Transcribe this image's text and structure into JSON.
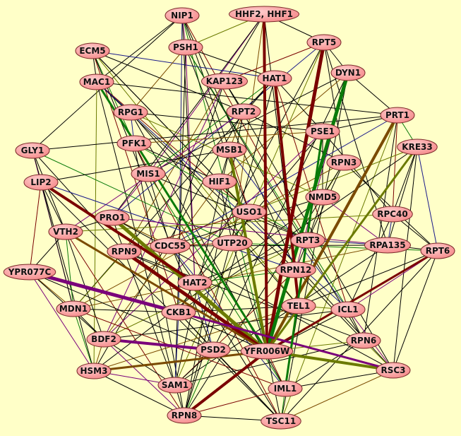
{
  "colors": {
    "background": "#ffffc8",
    "node_fill": "#ff9a9a",
    "node_border": "#7a2a2a",
    "k": "#000000",
    "r": "#7a0000",
    "g": "#0a7a0a",
    "o": "#6b7a00",
    "b": "#7a4a00",
    "p": "#7a007a",
    "n": "#1a1a8a"
  },
  "nodes": [
    "NIP1",
    "HHF2, HHF1",
    "ECM5",
    "PSH1",
    "RPT5",
    "DYN1",
    "MAC1",
    "KAP123",
    "HAT1",
    "RPG1",
    "RPT2",
    "PRT1",
    "PSE1",
    "PFK1",
    "KRE33",
    "GLY1",
    "MSB1",
    "RPN3",
    "MIS1",
    "LIP2",
    "HIF1",
    "NMD5",
    "USO1",
    "RPC40",
    "PRO1",
    "VTH2",
    "RPT3",
    "RPA135",
    "RPT6",
    "CDC55",
    "UTP20",
    "RPN9",
    "YPR077C",
    "RPN12",
    "HAT2",
    "TEL1",
    "ICL1",
    "MDN1",
    "CKB1",
    "RPN6",
    "BDF2",
    "PSD2",
    "YFR006W",
    "RSC3",
    "HSM3",
    "SAM1",
    "IML1",
    "RPN8",
    "TSC11"
  ],
  "heavy_edges": [
    [
      "YFR006W",
      "RPT5",
      "r",
      5
    ],
    [
      "YFR006W",
      "DYN1",
      "g",
      5
    ],
    [
      "YFR006W",
      "PRT1",
      "b",
      4
    ],
    [
      "YFR006W",
      "HHF2, HHF1",
      "r",
      4
    ],
    [
      "YFR006W",
      "PRO1",
      "o",
      5
    ],
    [
      "YFR006W",
      "RPN9",
      "r",
      5
    ],
    [
      "YFR006W",
      "RSC3",
      "o",
      4
    ],
    [
      "YPR077C",
      "CKB1",
      "p",
      5
    ],
    [
      "YFR006W",
      "RPN8",
      "r",
      4
    ],
    [
      "YFR006W",
      "VTH2",
      "b",
      3
    ],
    [
      "YFR006W",
      "MSB1",
      "o",
      4
    ],
    [
      "YFR006W",
      "MAC1",
      "g",
      3
    ],
    [
      "BDF2",
      "PSD2",
      "p",
      4
    ],
    [
      "YFR006W",
      "RPT6",
      "r",
      3
    ],
    [
      "YFR006W",
      "HSM3",
      "b",
      3
    ],
    [
      "HAT1",
      "TEL1",
      "r",
      4
    ],
    [
      "LIP2",
      "HAT2",
      "r",
      4
    ],
    [
      "CKB1",
      "RSC3",
      "p",
      3
    ],
    [
      "YFR006W",
      "KRE33",
      "o",
      3
    ],
    [
      "PSE1",
      "IML1",
      "g",
      3
    ]
  ],
  "edges": [
    "NIP1-PSH1",
    "NIP1-MAC1",
    "NIP1-MSB1",
    "NIP1-YFR006W",
    "NIP1-HAT2",
    "NIP1-RPT3",
    "NIP1-GLY1",
    "NIP1-CKB1",
    "NIP1-RPN12",
    "HHF2, HHF1-PSH1",
    "HHF2, HHF1-RPT5",
    "HHF2, HHF1-KAP123",
    "HHF2, HHF1-UTP20",
    "HHF2, HHF1-TEL1",
    "HHF2, HHF1-MIS1",
    "HHF2, HHF1-PRO1",
    "ECM5-MAC1",
    "ECM5-PFK1",
    "ECM5-HIF1",
    "ECM5-CKB1",
    "ECM5-RPT2",
    "ECM5-HAT1",
    "ECM5-USO1",
    "ECM5-TEL1",
    "ECM5-PSD2",
    "PSH1-HAT1",
    "PSH1-RPG1",
    "PSH1-USO1",
    "PSH1-HAT2",
    "PSH1-SAM1",
    "PSH1-RPN6",
    "PSH1-ICL1",
    "RPT5-DYN1",
    "RPT5-KAP123",
    "RPT5-RPN3",
    "RPT5-PRO1",
    "RPT5-CKB1",
    "RPT5-SAM1",
    "RPT5-RPA135",
    "DYN1-PRT1",
    "DYN1-HIF1",
    "DYN1-MIS1",
    "DYN1-RPN12",
    "DYN1-TSC11",
    "DYN1-PSD2",
    "MAC1-RPG1",
    "MAC1-PRT1",
    "MAC1-USO1",
    "MAC1-RPN12",
    "MAC1-ICL1",
    "MAC1-SAM1",
    "MAC1-HSM3",
    "KAP123-RPT2",
    "KAP123-CDC55",
    "KAP123-RPN9",
    "KAP123-RSC3",
    "KAP123-BDF2",
    "HAT1-RPT2",
    "HAT1-PSE1",
    "HAT1-MIS1",
    "HAT1-RPN8",
    "HAT1-ICL1",
    "HAT1-MDN1",
    "RPG1-PFK1",
    "RPG1-PSE1",
    "RPG1-NMD5",
    "RPG1-TEL1",
    "RPG1-IML1",
    "RPT2-MSB1",
    "RPT2-RPN3",
    "RPT2-VTH2",
    "RPT2-RPN8",
    "RPT2-HSM3",
    "PRT1-KRE33",
    "PRT1-PSE1",
    "PRT1-RPC40",
    "PRT1-GLY1",
    "PRT1-CDC55",
    "PRT1-RPN6",
    "PRT1-TSC11",
    "PSE1-NMD5",
    "PSE1-RPC40",
    "PSE1-PFK1",
    "PSE1-HAT2",
    "PSE1-BDF2",
    "PFK1-MIS1",
    "PFK1-HIF1",
    "PFK1-RPT3",
    "PFK1-RPN8",
    "PFK1-TSC11",
    "KRE33-RPC40",
    "KRE33-RPT6",
    "KRE33-RPA135",
    "KRE33-USO1",
    "KRE33-CKB1",
    "KRE33-RSC3",
    "GLY1-LIP2",
    "GLY1-VTH2",
    "GLY1-MDN1",
    "GLY1-RPN9",
    "GLY1-HSM3",
    "GLY1-UTP20",
    "MSB1-HIF1",
    "MSB1-USO1",
    "MSB1-LIP2",
    "MSB1-ICL1",
    "MSB1-SAM1",
    "RPN3-NMD5",
    "RPN3-RPT6",
    "RPN3-RPT3",
    "RPN3-MDN1",
    "RPN3-RPN8",
    "MIS1-PRO1",
    "MIS1-CDC55",
    "MIS1-RPT3",
    "MIS1-IML1",
    "LIP2-VTH2",
    "LIP2-YPR077C",
    "LIP2-MDN1",
    "LIP2-RPN12",
    "LIP2-TSC11",
    "HIF1-USO1",
    "HIF1-UTP20",
    "HIF1-RSC3",
    "HIF1-BDF2",
    "NMD5-RPT3",
    "NMD5-RPA135",
    "NMD5-CDC55",
    "NMD5-HSM3",
    "USO1-UTP20",
    "USO1-RPT3",
    "USO1-RPN9",
    "USO1-RPN8",
    "RPC40-RPA135",
    "RPC40-RPT6",
    "RPC40-VTH2",
    "RPC40-ICL1",
    "PRO1-RPN9",
    "PRO1-CDC55",
    "PRO1-VTH2",
    "PRO1-RPA135",
    "PRO1-RSC3",
    "VTH2-YPR077C",
    "VTH2-MDN1",
    "VTH2-BDF2",
    "VTH2-RPN8",
    "RPT3-RPN12",
    "RPT3-RPA135",
    "RPT3-HAT2",
    "RPT3-BDF2",
    "RPA135-RPT6",
    "RPA135-CDC55",
    "RPA135-MDN1",
    "RPA135-SAM1",
    "RPT6-ICL1",
    "RPT6-RSC3",
    "RPT6-TEL1",
    "RPT6-UTP20",
    "RPT6-TSC11",
    "CDC55-UTP20",
    "CDC55-HAT2",
    "CDC55-IML1",
    "RPN9-HAT2",
    "RPN9-MDN1",
    "RPN9-SAM1",
    "RPN9-RPN6",
    "YPR077C-MDN1",
    "YPR077C-BDF2",
    "YPR077C-HSM3",
    "YPR077C-PSD2",
    "RPN12-TEL1",
    "RPN12-HAT2",
    "RPN12-RPN6",
    "RPN12-SAM1",
    "HAT2-CKB1",
    "HAT2-PSD2",
    "HAT2-TSC11",
    "TEL1-ICL1",
    "TEL1-IML1",
    "TEL1-CKB1",
    "TEL1-HSM3",
    "ICL1-RPN6",
    "ICL1-RSC3",
    "ICL1-BDF2",
    "MDN1-BDF2",
    "MDN1-HSM3",
    "MDN1-CKB1",
    "MDN1-IML1",
    "CKB1-PSD2",
    "CKB1-SAM1",
    "CKB1-TSC11",
    "RPN6-RSC3",
    "RPN6-IML1",
    "RPN6-SAM1",
    "BDF2-HSM3",
    "BDF2-SAM1",
    "BDF2-RPN8",
    "PSD2-YFR006W",
    "PSD2-SAM1",
    "PSD2-RPN8",
    "PSD2-TSC11",
    "YFR006W-IML1",
    "YFR006W-TSC11",
    "YFR006W-TEL1",
    "YFR006W-ICL1",
    "YFR006W-RPN6",
    "YFR006W-CKB1",
    "YFR006W-UTP20",
    "RSC3-TSC11",
    "RSC3-IML1",
    "HSM3-SAM1",
    "HSM3-RPN8",
    "SAM1-RPN8",
    "IML1-TSC11",
    "RPN8-TSC11",
    "RPN8-IML1"
  ],
  "colored_thin": [
    "p",
    "k",
    "k",
    "g",
    "k",
    "r",
    "k",
    "n",
    "k",
    "o",
    "k",
    "k",
    "b",
    "k"
  ]
}
